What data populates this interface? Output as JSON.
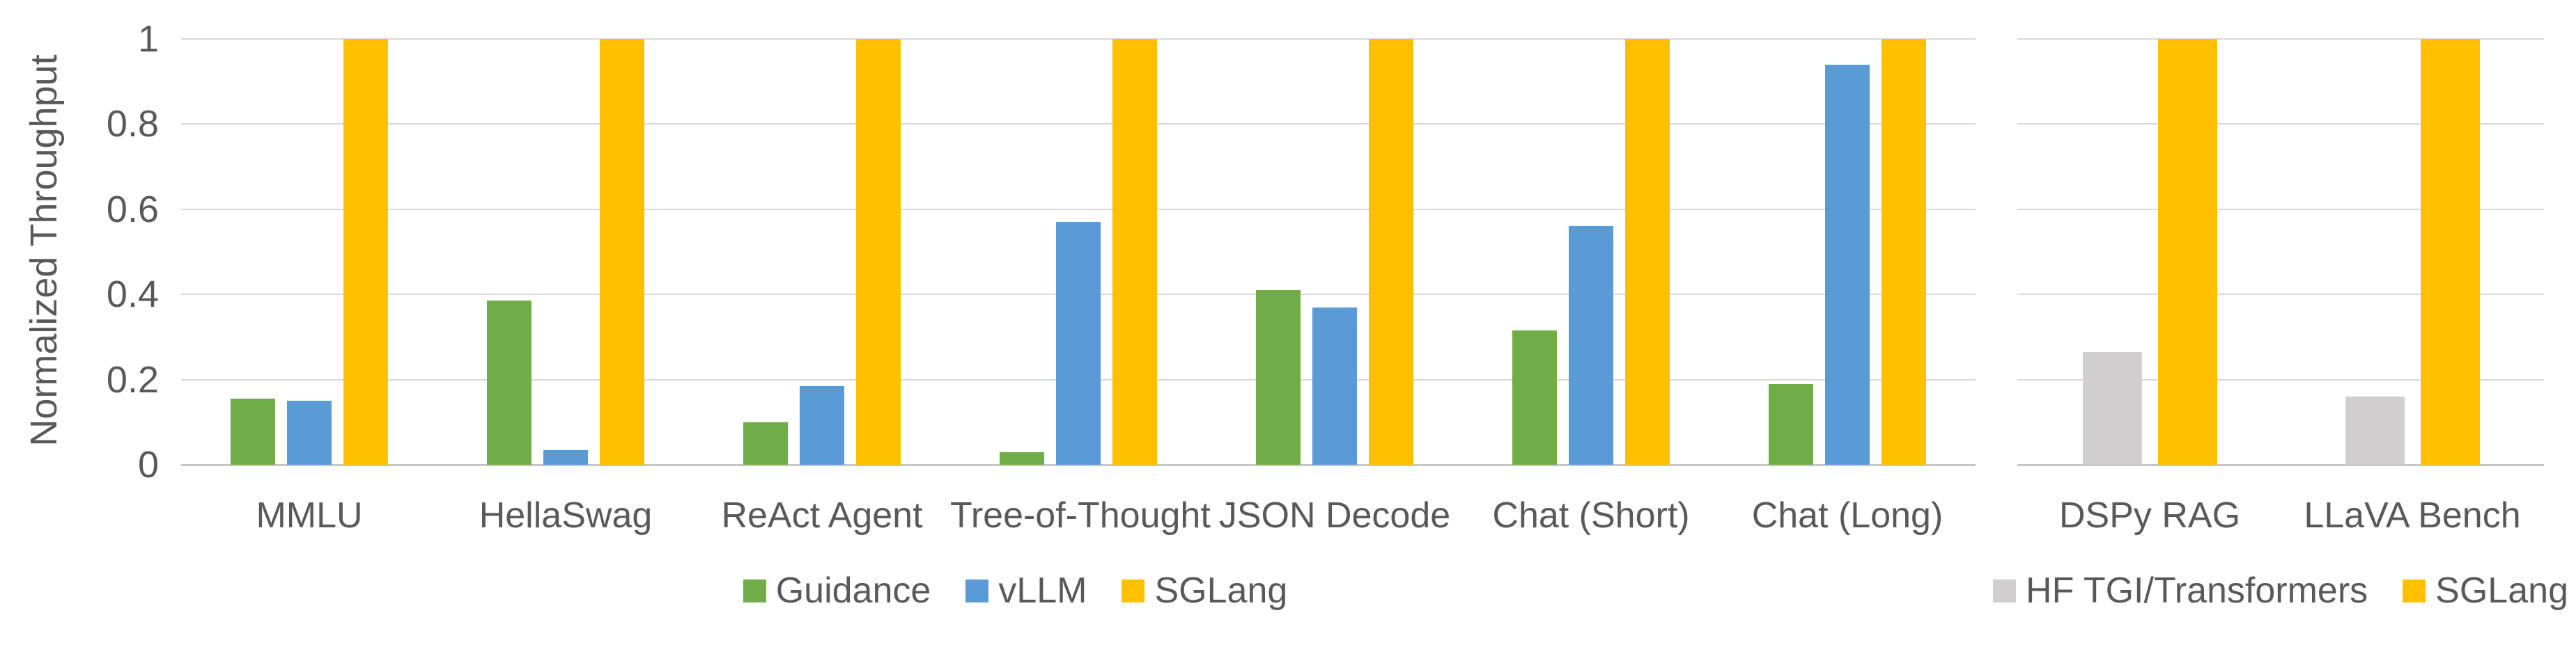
{
  "page": {
    "background": "#FFFFFF"
  },
  "colors": {
    "text": "#595959",
    "gridline": "#D9D9D9",
    "axis_line": "#C7C7C7",
    "background": "#FFFFFF",
    "guidance_green": "#70AD47",
    "vllm_blue": "#5B9BD5",
    "sglang_yellow": "#FFC000",
    "hf_gray": "#D0CECE"
  },
  "chart_data": [
    {
      "type": "bar",
      "title": "",
      "xlabel": "",
      "ylabel": "Normalized Throughput",
      "ylim": [
        0,
        1
      ],
      "grid": true,
      "show_tick_labels": true,
      "legend_position": "bottom",
      "yticks": [
        {
          "value": 0,
          "label": "0"
        },
        {
          "value": 0.2,
          "label": "0.2"
        },
        {
          "value": 0.4,
          "label": "0.4"
        },
        {
          "value": 0.6,
          "label": "0.6"
        },
        {
          "value": 0.8,
          "label": "0.8"
        },
        {
          "value": 1,
          "label": "1"
        }
      ],
      "categories": [
        "MMLU",
        "HellaSwag",
        "ReAct Agent",
        "Tree-of-Thought",
        "JSON Decode",
        "Chat (Short)",
        "Chat (Long)"
      ],
      "series": [
        {
          "name": "Guidance",
          "color": "#70AD47",
          "values": [
            0.155,
            0.385,
            0.1,
            0.03,
            0.41,
            0.315,
            0.19
          ]
        },
        {
          "name": "vLLM",
          "color": "#5B9BD5",
          "values": [
            0.15,
            0.035,
            0.185,
            0.57,
            0.37,
            0.56,
            0.94
          ]
        },
        {
          "name": "SGLang",
          "color": "#FFC000",
          "values": [
            1,
            1,
            1,
            1,
            1,
            1,
            1
          ]
        }
      ]
    },
    {
      "type": "bar",
      "title": "",
      "xlabel": "",
      "ylabel": "",
      "ylim": [
        0,
        1
      ],
      "grid": true,
      "show_tick_labels": false,
      "legend_position": "bottom",
      "yticks": [
        {
          "value": 0,
          "label": ""
        },
        {
          "value": 0.2,
          "label": ""
        },
        {
          "value": 0.4,
          "label": ""
        },
        {
          "value": 0.6,
          "label": ""
        },
        {
          "value": 0.8,
          "label": ""
        },
        {
          "value": 1,
          "label": ""
        }
      ],
      "categories": [
        "DSPy RAG",
        "LLaVA Bench"
      ],
      "series": [
        {
          "name": "HF TGI/Transformers",
          "color": "#D0CECE",
          "values": [
            0.265,
            0.16
          ]
        },
        {
          "name": "SGLang",
          "color": "#FFC000",
          "values": [
            1,
            1
          ]
        }
      ]
    }
  ]
}
